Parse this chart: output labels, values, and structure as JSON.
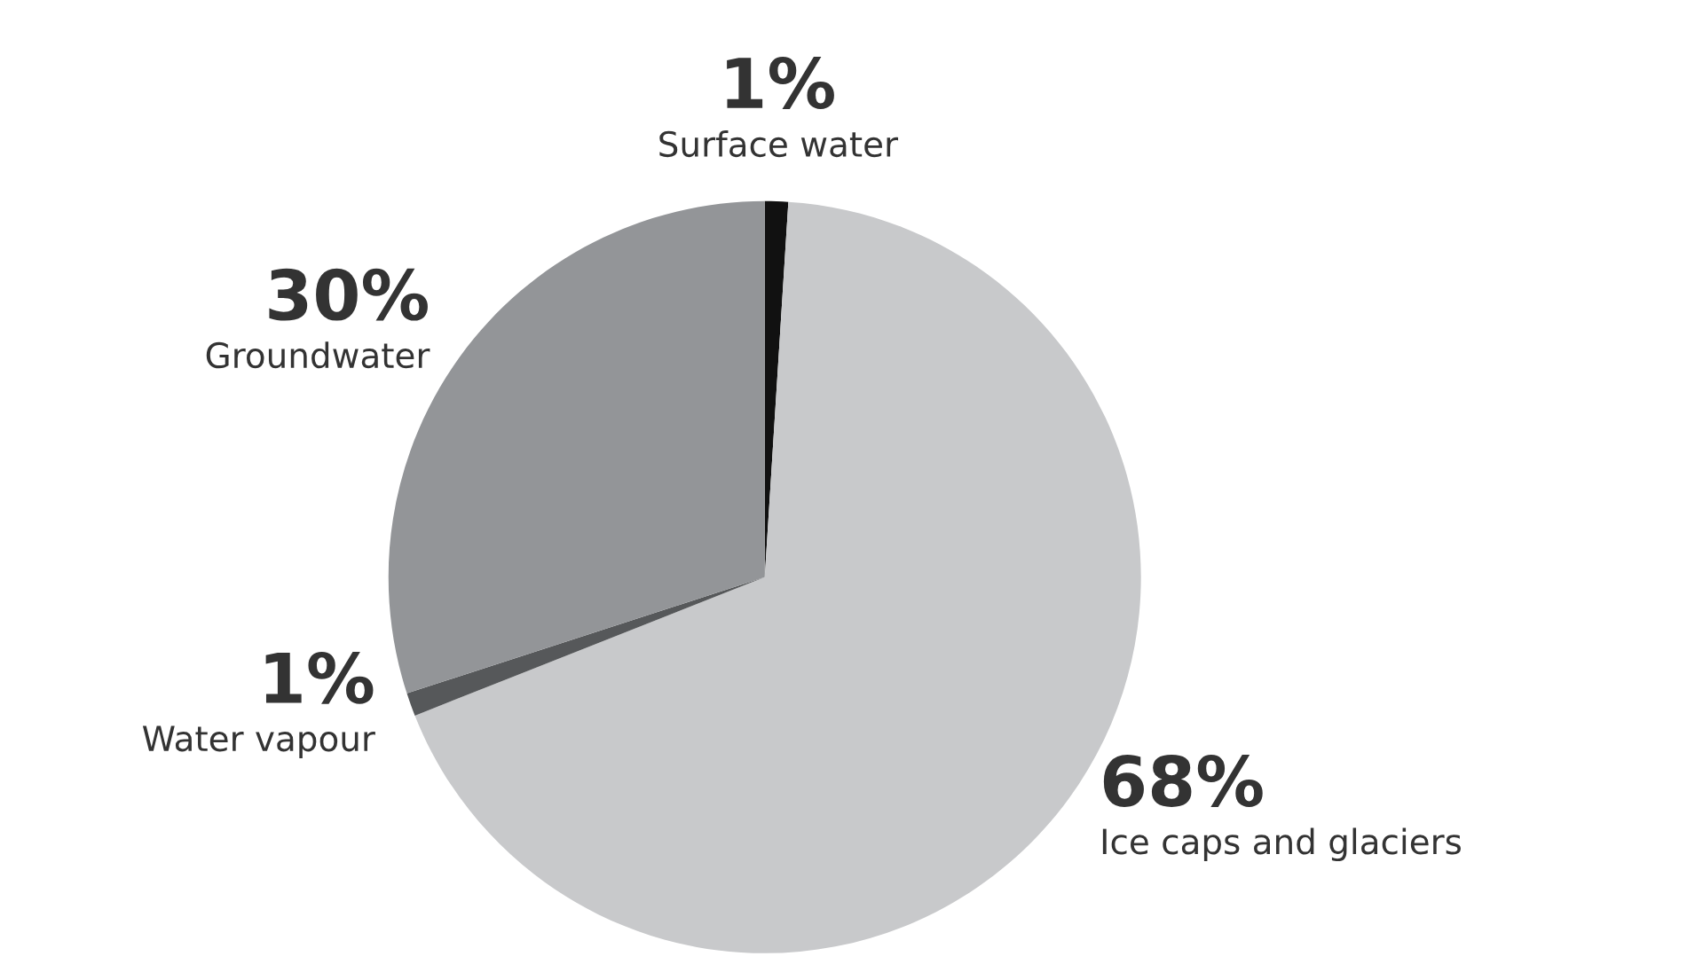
{
  "chart_data": {
    "type": "pie",
    "categories": [
      "Surface water",
      "Ice caps and glaciers",
      "Water vapour",
      "Groundwater"
    ],
    "values": [
      1,
      68,
      1,
      30
    ],
    "value_labels": [
      "1%",
      "68%",
      "1%",
      "30%"
    ],
    "colors": [
      "#111111",
      "#c8c9cb",
      "#56585a",
      "#939598"
    ]
  }
}
